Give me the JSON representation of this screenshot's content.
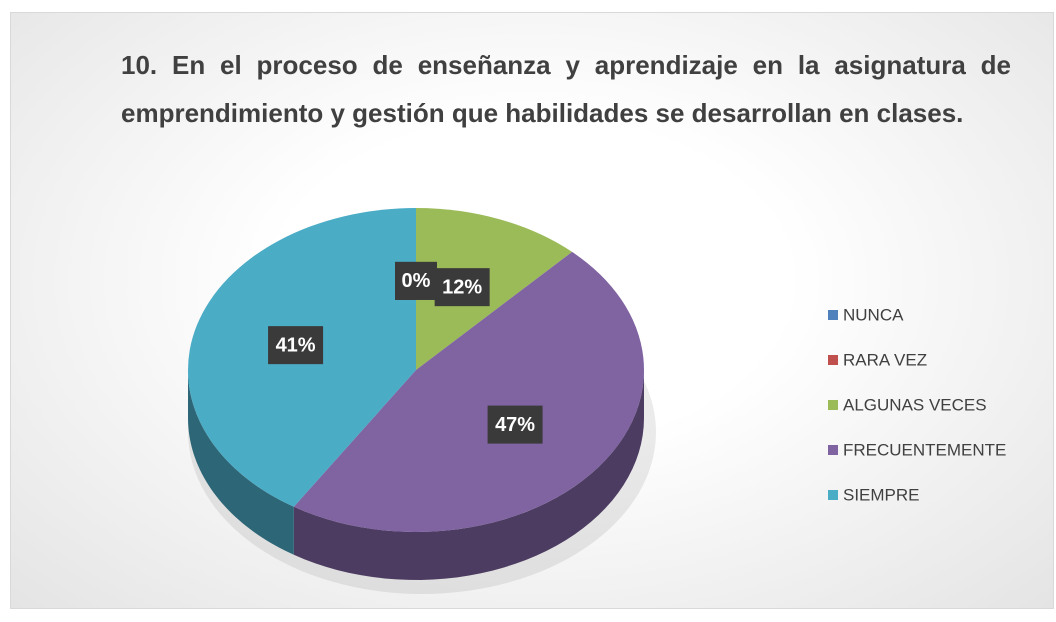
{
  "chart_data": {
    "type": "pie",
    "title": "10. En el proceso de enseñanza y aprendizaje en la asignatura de emprendimiento y gestión que habilidades se desarrollan en clases.",
    "categories": [
      "NUNCA",
      "RARA VEZ",
      "ALGUNAS VECES",
      "FRECUENTEMENTE",
      "SIEMPRE"
    ],
    "values": [
      0,
      0,
      12,
      47,
      41
    ],
    "value_labels": [
      "0%",
      "0%",
      "12%",
      "47%",
      "41%"
    ],
    "colors": [
      "#4f81bd",
      "#c0504d",
      "#9bbb59",
      "#8064a2",
      "#4bacc6"
    ],
    "legend": "right"
  }
}
